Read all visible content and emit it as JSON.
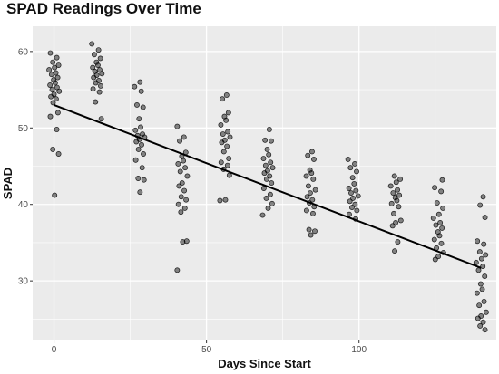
{
  "chart_data": {
    "type": "scatter",
    "title": "SPAD Readings Over Time",
    "xlabel": "Days Since Start",
    "ylabel": "SPAD",
    "xlim": [
      -7,
      145
    ],
    "ylim": [
      22.2,
      63.3
    ],
    "xticks": [
      0,
      50,
      100
    ],
    "yticks": [
      30,
      40,
      50,
      60
    ],
    "grid": true,
    "background": "#ebebeb",
    "grid_color": "#ffffff",
    "point_color": "#000000",
    "line_color": "#000000",
    "trend_line": {
      "x": [
        0,
        140
      ],
      "y": [
        53.0,
        31.7
      ]
    },
    "series": [
      {
        "x": 0,
        "y": [
          59.8,
          59.2,
          58.6,
          58.2,
          57.9,
          57.6,
          57.2,
          57.0,
          56.6,
          56.3,
          55.9,
          55.6,
          55.3,
          55.0,
          54.8,
          54.4,
          54.1,
          53.8,
          53.3,
          52.0,
          51.5,
          49.8,
          47.2,
          46.6,
          41.2
        ]
      },
      {
        "x": 14,
        "y": [
          61.0,
          60.2,
          59.6,
          59.1,
          58.6,
          58.2,
          57.9,
          57.6,
          57.4,
          57.1,
          56.9,
          56.6,
          56.2,
          55.9,
          55.5,
          55.1,
          54.7,
          53.4,
          51.2
        ]
      },
      {
        "x": 28,
        "y": [
          56.0,
          55.4,
          54.8,
          53.0,
          52.7,
          51.2,
          50.1,
          49.7,
          49.2,
          49.0,
          48.8,
          48.5,
          48.2,
          47.8,
          47.2,
          46.6,
          45.8,
          44.8,
          43.4,
          43.2,
          41.6
        ]
      },
      {
        "x": 42,
        "y": [
          50.2,
          48.8,
          48.3,
          46.8,
          46.3,
          45.7,
          45.3,
          44.8,
          44.3,
          43.7,
          42.8,
          42.4,
          41.8,
          41.0,
          40.6,
          40.0,
          39.5,
          39.0,
          35.2,
          35.1,
          31.4
        ]
      },
      {
        "x": 56,
        "y": [
          54.3,
          53.8,
          52.0,
          51.5,
          51.0,
          50.4,
          49.5,
          49.2,
          48.8,
          48.4,
          48.1,
          47.6,
          46.9,
          46.0,
          45.5,
          45.1,
          44.6,
          43.8,
          40.6,
          40.5
        ]
      },
      {
        "x": 70,
        "y": [
          49.8,
          48.4,
          48.3,
          47.2,
          46.5,
          46.0,
          45.5,
          45.1,
          44.8,
          44.4,
          44.1,
          43.7,
          43.3,
          42.8,
          42.1,
          41.3,
          40.8,
          40.1,
          39.5,
          38.6
        ]
      },
      {
        "x": 84,
        "y": [
          46.9,
          46.4,
          45.9,
          44.5,
          44.1,
          43.7,
          43.3,
          42.4,
          41.9,
          41.5,
          41.0,
          40.6,
          40.2,
          39.7,
          39.2,
          38.8,
          36.7,
          36.5,
          36.0
        ]
      },
      {
        "x": 98,
        "y": [
          45.9,
          45.3,
          44.8,
          44.3,
          43.5,
          42.7,
          42.1,
          41.8,
          41.5,
          41.1,
          40.8,
          40.4,
          40.0,
          39.6,
          39.2,
          38.7,
          38.1
        ]
      },
      {
        "x": 112,
        "y": [
          43.7,
          43.3,
          42.9,
          42.4,
          41.9,
          41.5,
          41.2,
          40.9,
          40.5,
          40.1,
          39.7,
          38.8,
          37.9,
          37.6,
          37.2,
          35.1,
          33.9
        ]
      },
      {
        "x": 126,
        "y": [
          43.2,
          42.2,
          41.7,
          40.2,
          39.5,
          38.7,
          38.2,
          37.6,
          37.3,
          36.9,
          36.4,
          35.9,
          35.4,
          34.9,
          34.3,
          33.7,
          33.2,
          32.8
        ]
      },
      {
        "x": 140,
        "y": [
          41.0,
          39.9,
          38.3,
          35.2,
          34.8,
          33.8,
          33.4,
          32.9,
          32.4,
          31.9,
          31.4,
          30.6,
          29.6,
          28.9,
          28.4,
          27.3,
          26.8,
          25.9,
          25.4,
          25.1,
          24.6,
          24.1,
          23.6
        ]
      }
    ]
  }
}
